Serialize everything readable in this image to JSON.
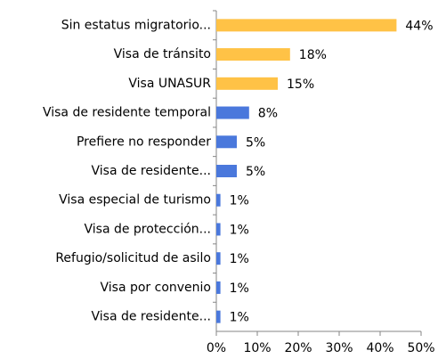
{
  "chart_data": {
    "type": "bar",
    "orientation": "horizontal",
    "categories": [
      "Sin estatus migratorio...",
      "Visa de tránsito",
      "Visa UNASUR",
      "Visa de residente temporal",
      "Prefiere no responder",
      "Visa de residente...",
      "Visa especial de turismo",
      "Visa de protección...",
      "Refugio/solicitud de asilo",
      "Visa por convenio",
      "Visa de residente..."
    ],
    "values": [
      44,
      18,
      15,
      8,
      5,
      5,
      1,
      1,
      1,
      1,
      1
    ],
    "value_labels": [
      "44%",
      "18%",
      "15%",
      "8%",
      "5%",
      "5%",
      "1%",
      "1%",
      "1%",
      "1%",
      "1%"
    ],
    "colors": [
      "#ffc246",
      "#ffc246",
      "#ffc246",
      "#4a78dc",
      "#4a78dc",
      "#4a78dc",
      "#4a78dc",
      "#4a78dc",
      "#4a78dc",
      "#4a78dc",
      "#4a78dc"
    ],
    "xlim": [
      0,
      50
    ],
    "xticks": [
      {
        "value": 0,
        "label": "0%"
      },
      {
        "value": 10,
        "label": "10%"
      },
      {
        "value": 20,
        "label": "20%"
      },
      {
        "value": 30,
        "label": "30%"
      },
      {
        "value": 40,
        "label": "40%"
      },
      {
        "value": 50,
        "label": "50%"
      }
    ]
  }
}
